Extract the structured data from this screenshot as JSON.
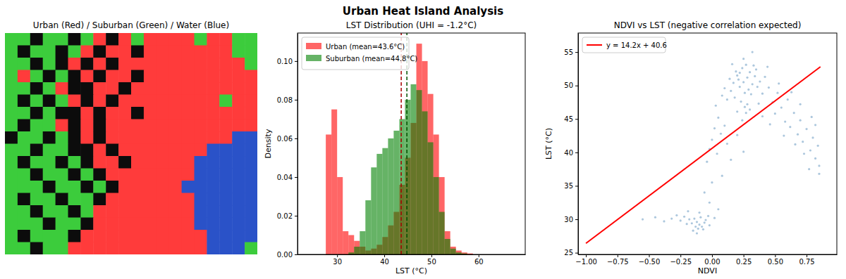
{
  "title": "Urban Heat Island Analysis",
  "chart_data": [
    {
      "type": "heatmap",
      "title": "Urban (Red) / Suburban (Green) / Water (Blue)",
      "tick_labels": false,
      "colors": [
        "#0c0c0c",
        "#ff3b3b",
        "#3ccc3c",
        "#2a52c8"
      ],
      "cells": [
        [
          2,
          2,
          0,
          2,
          2,
          0,
          2,
          1,
          0,
          1,
          2,
          1,
          1,
          1,
          1,
          2,
          1,
          1,
          2,
          2
        ],
        [
          2,
          0,
          2,
          2,
          0,
          2,
          1,
          0,
          1,
          1,
          0,
          1,
          1,
          1,
          1,
          1,
          1,
          1,
          2,
          2
        ],
        [
          2,
          2,
          0,
          2,
          0,
          1,
          0,
          1,
          0,
          1,
          1,
          1,
          1,
          1,
          1,
          1,
          1,
          1,
          1,
          2
        ],
        [
          2,
          1,
          2,
          0,
          2,
          0,
          1,
          0,
          1,
          1,
          0,
          1,
          1,
          1,
          1,
          1,
          1,
          1,
          1,
          1
        ],
        [
          2,
          2,
          0,
          2,
          1,
          0,
          0,
          1,
          1,
          0,
          1,
          1,
          1,
          1,
          1,
          1,
          1,
          1,
          1,
          1
        ],
        [
          2,
          0,
          2,
          0,
          2,
          1,
          0,
          1,
          0,
          1,
          1,
          1,
          1,
          1,
          1,
          1,
          1,
          2,
          1,
          1
        ],
        [
          2,
          2,
          0,
          2,
          0,
          0,
          1,
          0,
          1,
          1,
          0,
          1,
          1,
          1,
          1,
          1,
          1,
          1,
          1,
          1
        ],
        [
          2,
          0,
          2,
          2,
          1,
          0,
          1,
          0,
          1,
          1,
          1,
          1,
          1,
          1,
          1,
          1,
          1,
          1,
          1,
          1
        ],
        [
          0,
          2,
          2,
          0,
          2,
          0,
          1,
          0,
          1,
          1,
          1,
          1,
          1,
          1,
          1,
          1,
          1,
          1,
          3,
          3
        ],
        [
          2,
          2,
          0,
          2,
          2,
          0,
          0,
          1,
          0,
          1,
          1,
          1,
          1,
          1,
          1,
          1,
          3,
          3,
          3,
          3
        ],
        [
          2,
          0,
          2,
          2,
          0,
          2,
          0,
          1,
          1,
          0,
          1,
          1,
          1,
          1,
          1,
          3,
          3,
          3,
          3,
          3
        ],
        [
          2,
          2,
          0,
          2,
          2,
          0,
          2,
          0,
          1,
          1,
          1,
          1,
          1,
          1,
          1,
          3,
          3,
          3,
          3,
          3
        ],
        [
          2,
          2,
          2,
          0,
          2,
          2,
          0,
          2,
          0,
          1,
          1,
          1,
          1,
          1,
          3,
          3,
          3,
          3,
          3,
          3
        ],
        [
          2,
          0,
          2,
          2,
          0,
          2,
          2,
          0,
          1,
          1,
          1,
          1,
          1,
          1,
          1,
          3,
          3,
          3,
          3,
          3
        ],
        [
          2,
          2,
          0,
          2,
          2,
          0,
          2,
          1,
          1,
          1,
          1,
          1,
          1,
          1,
          1,
          3,
          3,
          3,
          3,
          3
        ],
        [
          2,
          2,
          2,
          0,
          2,
          2,
          0,
          1,
          1,
          1,
          1,
          1,
          1,
          1,
          1,
          3,
          3,
          3,
          3,
          3
        ],
        [
          2,
          0,
          2,
          2,
          2,
          0,
          1,
          1,
          1,
          1,
          1,
          1,
          1,
          1,
          1,
          1,
          3,
          3,
          3,
          3
        ],
        [
          2,
          2,
          0,
          2,
          2,
          1,
          1,
          1,
          1,
          1,
          1,
          1,
          1,
          1,
          1,
          1,
          3,
          3,
          3,
          2
        ]
      ]
    },
    {
      "type": "histogram",
      "title": "LST Distribution (UHI = -1.2°C)",
      "xlabel": "LST (°C)",
      "ylabel": "Density",
      "legend": "upper left",
      "bins": [
        27.6,
        28.8,
        30.0,
        31.2,
        32.4,
        33.6,
        34.8,
        36.0,
        37.2,
        38.4,
        39.6,
        40.8,
        42.0,
        43.2,
        44.4,
        45.6,
        46.8,
        48.0,
        49.2,
        50.4,
        51.6,
        52.8,
        54.0,
        55.2,
        56.4,
        57.6,
        58.8
      ],
      "series": [
        {
          "name": "Urban (mean=43.6°C)",
          "color": "#ff0000",
          "mean": 43.6,
          "values": [
            0.062,
            0.075,
            0.04,
            0.012,
            0.01,
            0.007,
            0.004,
            0.002,
            0.003,
            0.005,
            0.009,
            0.015,
            0.022,
            0.036,
            0.05,
            0.068,
            0.109,
            0.1,
            0.083,
            0.062,
            0.04,
            0.012,
            0.004,
            0.002,
            0.001,
            0.0005
          ]
        },
        {
          "name": "Suburban (mean=44.8°C)",
          "color": "#008000",
          "mean": 44.8,
          "values": [
            0,
            0,
            0,
            0,
            0.001,
            0.004,
            0.012,
            0.028,
            0.045,
            0.052,
            0.055,
            0.06,
            0.064,
            0.07,
            0.08,
            0.088,
            0.085,
            0.074,
            0.058,
            0.04,
            0.022,
            0.008,
            0.003,
            0.001,
            0.0005,
            0
          ]
        }
      ],
      "xlim": [
        21.6,
        69.9
      ],
      "ylim": [
        0,
        0.1145
      ],
      "xticks": [
        30,
        40,
        50,
        60
      ],
      "yticks": [
        {
          "value": 0,
          "label": "0.00"
        },
        {
          "value": 0.02,
          "label": "0.02"
        },
        {
          "value": 0.04,
          "label": "0.04"
        },
        {
          "value": 0.06,
          "label": "0.06"
        },
        {
          "value": 0.08,
          "label": "0.08"
        },
        {
          "value": 0.1,
          "label": "0.10"
        }
      ]
    },
    {
      "type": "scatter",
      "title": "NDVI vs LST (negative correlation expected)",
      "xlabel": "NDVI",
      "ylabel": "LST (°C)",
      "legend": "upper left",
      "color": "#4682b4",
      "x": [
        0.25,
        0.28,
        0.22,
        0.3,
        0.26,
        0.2,
        0.32,
        0.24,
        0.18,
        0.29,
        0.27,
        0.23,
        0.34,
        0.21,
        0.31,
        0.19,
        0.26,
        0.36,
        0.15,
        0.33,
        0.28,
        0.22,
        0.38,
        0.17,
        0.25,
        0.3,
        0.12,
        0.4,
        0.35,
        0.14,
        0.27,
        0.42,
        0.1,
        0.37,
        0.24,
        0.45,
        0.2,
        0.08,
        0.32,
        0.16,
        0.48,
        0.5,
        0.46,
        0.55,
        0.52,
        0.58,
        0.6,
        0.62,
        0.65,
        0.68,
        0.7,
        0.72,
        0.75,
        0.78,
        0.8,
        0.82,
        0.84,
        0.85,
        0.77,
        0.73,
        0.66,
        0.57,
        0.53,
        0.44,
        0.4,
        0.63,
        0.7,
        0.82,
        0.85,
        0.79,
        0.05,
        0.02,
        0.0,
        0.04,
        0.07,
        -0.02,
        0.1,
        0.12,
        0.03,
        -0.04,
        0.15,
        0.2,
        0.08,
        0.25,
        -0.1,
        -0.12,
        -0.08,
        -0.14,
        -0.06,
        -0.11,
        -0.16,
        -0.09,
        -0.13,
        -0.05,
        -0.18,
        -0.07,
        -0.2,
        -0.03,
        -0.15,
        -0.22,
        -0.1,
        -0.02,
        -0.25,
        -0.28,
        -0.32,
        -0.38,
        -0.45,
        0.02,
        0.05,
        -0.19,
        -0.12,
        -0.02,
        -0.06,
        0.0,
        -0.55
      ],
      "values": [
        50.5,
        51.2,
        49.8,
        52.0,
        48.9,
        51.5,
        50.2,
        52.6,
        48.2,
        49.4,
        53.1,
        47.6,
        51.4,
        50.9,
        48.7,
        52.1,
        46.8,
        49.8,
        49.2,
        53.0,
        47.2,
        51.9,
        50.6,
        50.4,
        54.0,
        46.4,
        47.9,
        48.8,
        52.4,
        51.0,
        45.9,
        51.3,
        49.6,
        47.3,
        44.8,
        49.7,
        46.1,
        48.5,
        55.0,
        53.2,
        47.5,
        45.8,
        44.2,
        46.7,
        48.9,
        44.6,
        47.9,
        43.8,
        45.9,
        42.7,
        44.8,
        41.6,
        43.5,
        40.3,
        42.2,
        39.1,
        41.0,
        38.0,
        37.5,
        39.8,
        41.2,
        42.5,
        50.3,
        52.8,
        45.4,
        49.0,
        47.2,
        44.1,
        36.8,
        45.3,
        45.2,
        43.6,
        41.9,
        39.8,
        42.8,
        40.5,
        44.0,
        41.3,
        47.0,
        38.6,
        38.9,
        42.6,
        36.5,
        40.1,
        29.2,
        29.6,
        28.9,
        30.1,
        29.5,
        28.6,
        29.4,
        30.3,
        28.9,
        29.9,
        30.0,
        28.5,
        29.3,
        30.5,
        28.3,
        30.4,
        31.0,
        29.1,
        29.8,
        30.6,
        30.1,
        29.7,
        30.3,
        30.2,
        31.5,
        31.2,
        27.9,
        32.5,
        34.0,
        35.5,
        30.0
      ],
      "fit": {
        "name": "y = 14.2x + 40.6",
        "color": "#ff0000",
        "slope": 14.2,
        "intercept": 40.6,
        "x": [
          -1.0,
          0.86
        ]
      },
      "xlim": [
        -1.062,
        0.99
      ],
      "ylim": [
        24.75,
        57.85
      ],
      "xticks": [
        {
          "value": -1.0,
          "label": "−1.00"
        },
        {
          "value": -0.75,
          "label": "−0.75"
        },
        {
          "value": -0.5,
          "label": "−0.50"
        },
        {
          "value": -0.25,
          "label": "−0.25"
        },
        {
          "value": 0,
          "label": "0.00"
        },
        {
          "value": 0.25,
          "label": "0.25"
        },
        {
          "value": 0.5,
          "label": "0.50"
        },
        {
          "value": 0.75,
          "label": "0.75"
        }
      ],
      "yticks": [
        25,
        30,
        35,
        40,
        45,
        50,
        55
      ]
    }
  ]
}
